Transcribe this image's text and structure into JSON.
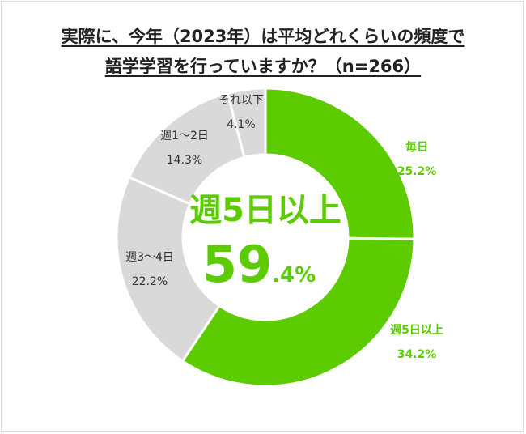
{
  "chart_data": {
    "type": "pie",
    "donut": true,
    "title_line1": "実際に、今年（2023年）は平均どれくらいの頻度で",
    "title_line2": "語学学習を行っていますか？（n=266）",
    "categories": [
      "毎日",
      "週5日以上",
      "週3〜4日",
      "週1〜2日",
      "それ以下"
    ],
    "values": [
      25.2,
      34.2,
      22.2,
      14.3,
      4.1
    ],
    "value_labels": [
      "25.2%",
      "34.2%",
      "22.2%",
      "14.3%",
      "4.1%"
    ],
    "colors": [
      "#5ccc00",
      "#5ccc00",
      "#d9d9d9",
      "#d9d9d9",
      "#d9d9d9"
    ],
    "label_colors": [
      "#5ccc00",
      "#5ccc00",
      "#333333",
      "#333333",
      "#333333"
    ],
    "start": "top",
    "direction": "clockwise",
    "center_label": "週5日以上",
    "center_value_int": "59",
    "center_value_dec": ".4%"
  }
}
